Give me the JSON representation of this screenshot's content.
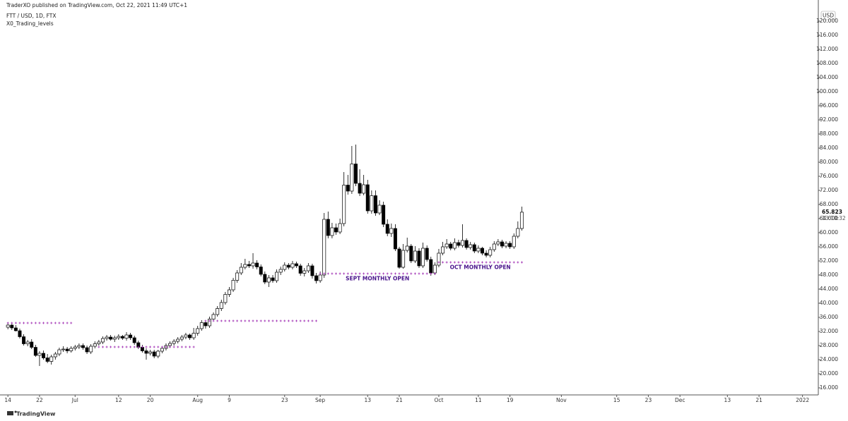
{
  "header": {
    "publisher": "TraderXO published on TradingView.com, Oct 22, 2021 11:49 UTC+1",
    "symbol": "FTT / USD, 1D, FTX",
    "indicator": "X0_Trading_levels"
  },
  "footer": {
    "brand": "TradingView"
  },
  "chart_data": {
    "type": "candlestick",
    "currency": "USD",
    "countdown": "13:10:32",
    "up_color": "#ffffff",
    "down_color": "#000000",
    "wick_color": "#000000",
    "level_color": "#9c27b0",
    "level_label_color": "#4a148c",
    "x": [
      "2021-06-14",
      "2021-06-15",
      "2021-06-16",
      "2021-06-17",
      "2021-06-18",
      "2021-06-19",
      "2021-06-20",
      "2021-06-21",
      "2021-06-22",
      "2021-06-23",
      "2021-06-24",
      "2021-06-25",
      "2021-06-26",
      "2021-06-27",
      "2021-06-28",
      "2021-06-29",
      "2021-06-30",
      "2021-07-01",
      "2021-07-02",
      "2021-07-03",
      "2021-07-04",
      "2021-07-05",
      "2021-07-06",
      "2021-07-07",
      "2021-07-08",
      "2021-07-09",
      "2021-07-10",
      "2021-07-11",
      "2021-07-12",
      "2021-07-13",
      "2021-07-14",
      "2021-07-15",
      "2021-07-16",
      "2021-07-17",
      "2021-07-18",
      "2021-07-19",
      "2021-07-20",
      "2021-07-21",
      "2021-07-22",
      "2021-07-23",
      "2021-07-24",
      "2021-07-25",
      "2021-07-26",
      "2021-07-27",
      "2021-07-28",
      "2021-07-29",
      "2021-07-30",
      "2021-07-31",
      "2021-08-01",
      "2021-08-02",
      "2021-08-03",
      "2021-08-04",
      "2021-08-05",
      "2021-08-06",
      "2021-08-07",
      "2021-08-08",
      "2021-08-09",
      "2021-08-10",
      "2021-08-11",
      "2021-08-12",
      "2021-08-13",
      "2021-08-14",
      "2021-08-15",
      "2021-08-16",
      "2021-08-17",
      "2021-08-18",
      "2021-08-19",
      "2021-08-20",
      "2021-08-21",
      "2021-08-22",
      "2021-08-23",
      "2021-08-24",
      "2021-08-25",
      "2021-08-26",
      "2021-08-27",
      "2021-08-28",
      "2021-08-29",
      "2021-08-30",
      "2021-08-31",
      "2021-09-01",
      "2021-09-02",
      "2021-09-03",
      "2021-09-04",
      "2021-09-05",
      "2021-09-06",
      "2021-09-07",
      "2021-09-08",
      "2021-09-09",
      "2021-09-10",
      "2021-09-11",
      "2021-09-12",
      "2021-09-13",
      "2021-09-14",
      "2021-09-15",
      "2021-09-16",
      "2021-09-17",
      "2021-09-18",
      "2021-09-19",
      "2021-09-20",
      "2021-09-21",
      "2021-09-22",
      "2021-09-23",
      "2021-09-24",
      "2021-09-25",
      "2021-09-26",
      "2021-09-27",
      "2021-09-28",
      "2021-09-29",
      "2021-09-30",
      "2021-10-01",
      "2021-10-02",
      "2021-10-03",
      "2021-10-04",
      "2021-10-05",
      "2021-10-06",
      "2021-10-07",
      "2021-10-08",
      "2021-10-09",
      "2021-10-10",
      "2021-10-11",
      "2021-10-12",
      "2021-10-13",
      "2021-10-14",
      "2021-10-15",
      "2021-10-16",
      "2021-10-17",
      "2021-10-18",
      "2021-10-19",
      "2021-10-20",
      "2021-10-21",
      "2021-10-22"
    ],
    "open": [
      33.2,
      33.8,
      33.0,
      32.2,
      30.5,
      28.5,
      29.0,
      27.5,
      25.2,
      25.8,
      24.5,
      23.5,
      24.8,
      25.6,
      26.8,
      27.0,
      26.5,
      27.2,
      27.6,
      28.0,
      27.4,
      26.2,
      27.8,
      28.5,
      29.0,
      30.0,
      30.4,
      29.8,
      30.2,
      30.6,
      30.1,
      31.0,
      30.2,
      28.8,
      27.5,
      26.5,
      25.8,
      26.2,
      25.0,
      26.4,
      27.2,
      28.0,
      28.6,
      29.2,
      29.8,
      30.4,
      31.0,
      30.2,
      31.5,
      32.8,
      34.5,
      33.6,
      35.5,
      36.8,
      38.5,
      40.2,
      42.5,
      43.8,
      46.5,
      48.6,
      50.2,
      51.0,
      50.6,
      51.4,
      50.3,
      48.2,
      46.0,
      47.2,
      46.4,
      48.8,
      49.6,
      50.8,
      50.2,
      51.2,
      50.6,
      48.5,
      49.2,
      50.6,
      47.8,
      46.4,
      48.0,
      63.8,
      59.2,
      61.4,
      60.2,
      62.6,
      73.5,
      71.8,
      79.5,
      74.0,
      71.2,
      73.6,
      66.2,
      70.5,
      65.6,
      67.8,
      62.4,
      59.8,
      61.2,
      55.4,
      50.2,
      55.0,
      56.2,
      52.0,
      54.8,
      50.6,
      55.6,
      52.4,
      48.6,
      50.8,
      54.2,
      56.0,
      56.8,
      55.6,
      57.2,
      56.4,
      57.8,
      55.8,
      56.6,
      54.8,
      55.6,
      54.2,
      53.6,
      55.2,
      56.8,
      57.4,
      56.2,
      57.0,
      56.0,
      59.0,
      61.2
    ],
    "high": [
      34.6,
      34.4,
      33.8,
      32.8,
      31.2,
      29.6,
      29.8,
      28.2,
      26.4,
      26.6,
      25.6,
      25.4,
      26.2,
      27.4,
      27.8,
      27.6,
      27.8,
      28.2,
      28.6,
      28.6,
      28.0,
      28.4,
      29.2,
      29.6,
      30.6,
      31.0,
      31.0,
      30.8,
      31.2,
      31.0,
      31.8,
      31.6,
      30.8,
      29.4,
      28.2,
      27.2,
      26.8,
      26.8,
      26.8,
      27.6,
      28.6,
      29.2,
      29.8,
      30.4,
      31.0,
      31.6,
      31.4,
      33.0,
      33.6,
      35.2,
      35.0,
      36.2,
      37.4,
      39.2,
      41.0,
      43.2,
      44.6,
      47.2,
      49.4,
      51.4,
      52.6,
      52.0,
      54.2,
      52.2,
      51.0,
      49.0,
      48.0,
      48.0,
      49.6,
      50.4,
      51.6,
      51.4,
      52.0,
      51.8,
      51.2,
      50.0,
      51.4,
      51.2,
      48.6,
      49.0,
      65.6,
      66.0,
      62.8,
      62.6,
      64.0,
      77.2,
      76.4,
      84.6,
      85.0,
      78.0,
      76.4,
      75.0,
      72.0,
      72.0,
      69.2,
      68.8,
      63.8,
      62.6,
      62.4,
      56.0,
      56.8,
      58.6,
      56.8,
      56.2,
      55.6,
      57.2,
      56.4,
      53.2,
      51.6,
      55.4,
      57.4,
      58.2,
      57.4,
      58.4,
      58.0,
      62.4,
      58.4,
      57.4,
      57.2,
      56.4,
      56.0,
      55.0,
      56.0,
      57.6,
      58.2,
      58.0,
      57.6,
      57.6,
      59.8,
      63.2,
      67.4
    ],
    "low": [
      32.6,
      32.4,
      32.0,
      30.0,
      28.0,
      27.8,
      27.0,
      24.8,
      22.2,
      24.0,
      23.0,
      22.6,
      24.0,
      25.0,
      26.2,
      25.8,
      26.0,
      26.6,
      27.0,
      26.8,
      25.6,
      25.6,
      27.2,
      28.0,
      28.4,
      29.4,
      29.4,
      29.0,
      29.6,
      29.6,
      29.4,
      29.6,
      28.2,
      27.0,
      26.0,
      24.0,
      25.2,
      24.4,
      24.4,
      25.8,
      26.6,
      27.4,
      28.0,
      28.6,
      29.2,
      29.8,
      29.6,
      29.6,
      30.8,
      32.2,
      32.8,
      33.0,
      35.0,
      36.2,
      37.8,
      39.6,
      41.8,
      43.2,
      45.8,
      48.0,
      49.6,
      50.0,
      49.8,
      49.6,
      47.6,
      45.4,
      44.6,
      45.8,
      45.8,
      48.0,
      49.0,
      49.6,
      49.6,
      50.0,
      47.8,
      47.6,
      48.6,
      47.0,
      45.6,
      45.8,
      47.2,
      58.4,
      58.4,
      59.4,
      59.6,
      61.8,
      70.8,
      71.0,
      73.2,
      70.4,
      70.6,
      65.4,
      65.4,
      64.8,
      65.0,
      61.6,
      59.0,
      58.8,
      54.8,
      49.8,
      49.8,
      54.4,
      51.4,
      51.4,
      50.0,
      50.0,
      51.8,
      47.8,
      48.0,
      50.2,
      53.6,
      55.4,
      55.0,
      55.0,
      55.8,
      55.8,
      55.2,
      55.2,
      54.2,
      54.2,
      53.6,
      53.0,
      53.0,
      54.6,
      56.2,
      55.6,
      55.6,
      55.4,
      55.4,
      58.4,
      60.6
    ],
    "close": [
      33.8,
      33.0,
      32.2,
      30.5,
      28.5,
      29.0,
      27.5,
      25.2,
      25.8,
      24.5,
      23.5,
      24.8,
      25.6,
      26.8,
      27.0,
      26.5,
      27.2,
      27.6,
      28.0,
      27.4,
      26.2,
      27.8,
      28.5,
      29.0,
      30.0,
      30.4,
      29.8,
      30.2,
      30.6,
      30.1,
      31.0,
      30.2,
      28.8,
      27.5,
      26.5,
      25.8,
      26.2,
      25.0,
      26.4,
      27.2,
      28.0,
      28.6,
      29.2,
      29.8,
      30.4,
      31.0,
      30.2,
      31.5,
      32.8,
      34.5,
      33.6,
      35.5,
      36.8,
      38.5,
      40.2,
      42.5,
      43.8,
      46.5,
      48.6,
      50.2,
      51.0,
      50.6,
      51.4,
      50.3,
      48.2,
      46.0,
      47.2,
      46.4,
      48.8,
      49.6,
      50.8,
      50.2,
      51.2,
      50.6,
      48.5,
      49.2,
      50.6,
      47.8,
      46.4,
      48.0,
      63.8,
      59.2,
      61.4,
      60.2,
      62.6,
      73.5,
      71.8,
      79.5,
      74.0,
      71.2,
      73.6,
      66.2,
      70.5,
      65.6,
      67.8,
      62.4,
      59.8,
      61.2,
      55.4,
      50.2,
      55.0,
      56.2,
      52.0,
      54.8,
      50.6,
      55.6,
      52.4,
      48.6,
      50.8,
      54.2,
      56.0,
      56.8,
      55.6,
      57.2,
      56.4,
      57.8,
      55.8,
      56.6,
      54.8,
      55.6,
      54.2,
      53.6,
      55.2,
      56.8,
      57.4,
      56.2,
      57.0,
      56.0,
      59.0,
      61.2,
      65.823
    ],
    "levels": [
      {
        "value": 34.4,
        "start": "2021-06-14",
        "end": "2021-06-30"
      },
      {
        "value": 27.6,
        "start": "2021-07-07",
        "end": "2021-07-31"
      },
      {
        "value": 35.0,
        "start": "2021-08-03",
        "end": "2021-08-31"
      },
      {
        "value": 48.4,
        "start": "2021-09-01",
        "end": "2021-09-30",
        "label": "SEPT MONTHLY OPEN"
      },
      {
        "value": 51.6,
        "start": "2021-10-01",
        "end": "2021-10-22",
        "label": "OCT MONTHLY OPEN"
      }
    ],
    "xlim": [
      "2021-06-12",
      "2022-01-05"
    ],
    "xticks": [
      {
        "value": "2021-06-14",
        "label": "14"
      },
      {
        "value": "2021-06-22",
        "label": "22"
      },
      {
        "value": "2021-07-01",
        "label": "Jul"
      },
      {
        "value": "2021-07-12",
        "label": "12"
      },
      {
        "value": "2021-07-20",
        "label": "20"
      },
      {
        "value": "2021-08-01",
        "label": "Aug"
      },
      {
        "value": "2021-08-09",
        "label": "9"
      },
      {
        "value": "2021-08-23",
        "label": "23"
      },
      {
        "value": "2021-09-01",
        "label": "Sep"
      },
      {
        "value": "2021-09-13",
        "label": "13"
      },
      {
        "value": "2021-09-21",
        "label": "21"
      },
      {
        "value": "2021-10-01",
        "label": "Oct"
      },
      {
        "value": "2021-10-11",
        "label": "11"
      },
      {
        "value": "2021-10-19",
        "label": "19"
      },
      {
        "value": "2021-11-01",
        "label": "Nov"
      },
      {
        "value": "2021-11-15",
        "label": "15"
      },
      {
        "value": "2021-11-23",
        "label": "23"
      },
      {
        "value": "2021-12-01",
        "label": "Dec"
      },
      {
        "value": "2021-12-13",
        "label": "13"
      },
      {
        "value": "2021-12-21",
        "label": "21"
      },
      {
        "value": "2022-01-01",
        "label": "2022"
      }
    ],
    "ylim": [
      14,
      126
    ],
    "yticks": [
      {
        "value": 16,
        "label": "16.000"
      },
      {
        "value": 20,
        "label": "20.000"
      },
      {
        "value": 24,
        "label": "24.000"
      },
      {
        "value": 28,
        "label": "28.000"
      },
      {
        "value": 32,
        "label": "32.000"
      },
      {
        "value": 36,
        "label": "36.000"
      },
      {
        "value": 40,
        "label": "40.000"
      },
      {
        "value": 44,
        "label": "44.000"
      },
      {
        "value": 48,
        "label": "48.000"
      },
      {
        "value": 52,
        "label": "52.000"
      },
      {
        "value": 56,
        "label": "56.000"
      },
      {
        "value": 60,
        "label": "60.000"
      },
      {
        "value": 64,
        "label": "64.000"
      },
      {
        "value": 68,
        "label": "68.000"
      },
      {
        "value": 72,
        "label": "72.000"
      },
      {
        "value": 76,
        "label": "76.000"
      },
      {
        "value": 80,
        "label": "80.000"
      },
      {
        "value": 84,
        "label": "84.000"
      },
      {
        "value": 88,
        "label": "88.000"
      },
      {
        "value": 92,
        "label": "92.000"
      },
      {
        "value": 96,
        "label": "96.000"
      },
      {
        "value": 100,
        "label": "100.000"
      },
      {
        "value": 104,
        "label": "104.000"
      },
      {
        "value": 108,
        "label": "108.000"
      },
      {
        "value": 112,
        "label": "112.000"
      },
      {
        "value": 116,
        "label": "116.000"
      },
      {
        "value": 120,
        "label": "120.000"
      }
    ],
    "grid": false
  }
}
